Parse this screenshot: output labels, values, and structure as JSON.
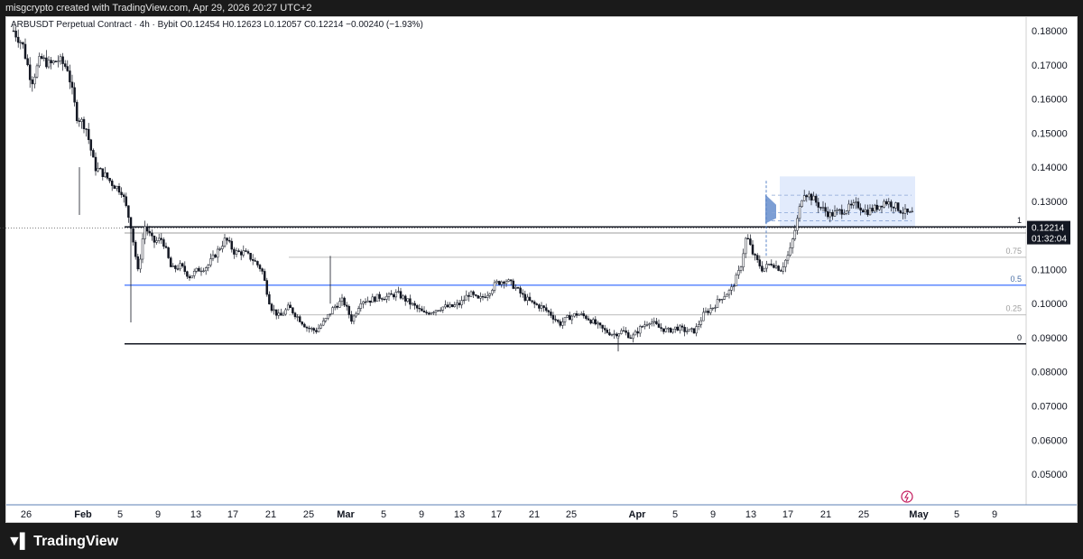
{
  "header": {
    "attribution": "misgcrypto created with TradingView.com, Apr 29, 2026 20:27 UTC+2"
  },
  "legend": {
    "symbol": "ARBUSDT Perpetual Contract · 4h · Bybit",
    "ohlc": "O0.12454  H0.12623  L0.12057  C0.12214  −0.00240 (−1.93%)"
  },
  "footer": {
    "brand": "TradingView"
  },
  "price_label": {
    "price": "0.12214",
    "countdown": "01:32:04"
  },
  "colors": {
    "up": "#131722",
    "down": "#131722",
    "fib_blue": "#2962ff",
    "box_fill": "#dbe6fb",
    "grey_line": "#bdbdbd"
  },
  "chart_data": {
    "type": "candlestick",
    "timeframe": "4h",
    "ylim": [
      0.041,
      0.184
    ],
    "y_ticks": [
      "0.18000",
      "0.17000",
      "0.16000",
      "0.15000",
      "0.14000",
      "0.13000",
      "0.11000",
      "0.10000",
      "0.09000",
      "0.08000",
      "0.07000",
      "0.06000",
      "0.05000"
    ],
    "x_ticks": [
      "26",
      "Feb",
      "5",
      "9",
      "13",
      "17",
      "21",
      "25",
      "Mar",
      "5",
      "9",
      "13",
      "17",
      "21",
      "25",
      "Apr",
      "5",
      "9",
      "13",
      "17",
      "21",
      "25",
      "May",
      "5",
      "9"
    ],
    "fib_levels": [
      {
        "label": "1",
        "price": 0.1225
      },
      {
        "label": "0.75",
        "price": 0.1136
      },
      {
        "label": "0.5",
        "price": 0.1054
      },
      {
        "label": "0.25",
        "price": 0.0967
      },
      {
        "label": "0",
        "price": 0.0882
      }
    ],
    "range_box": {
      "top": 0.1373,
      "bottom": 0.1225
    },
    "price_path": [
      [
        0,
        0.18
      ],
      [
        10,
        0.176
      ],
      [
        20,
        0.165
      ],
      [
        30,
        0.172
      ],
      [
        40,
        0.17
      ],
      [
        50,
        0.1715
      ],
      [
        60,
        0.169
      ],
      [
        70,
        0.155
      ],
      [
        80,
        0.152
      ],
      [
        90,
        0.14
      ],
      [
        100,
        0.138
      ],
      [
        110,
        0.135
      ],
      [
        120,
        0.133
      ],
      [
        130,
        0.123
      ],
      [
        138,
        0.109
      ],
      [
        145,
        0.123
      ],
      [
        155,
        0.118
      ],
      [
        165,
        0.119
      ],
      [
        175,
        0.11
      ],
      [
        185,
        0.111
      ],
      [
        195,
        0.108
      ],
      [
        205,
        0.11
      ],
      [
        215,
        0.111
      ],
      [
        225,
        0.115
      ],
      [
        235,
        0.119
      ],
      [
        245,
        0.115
      ],
      [
        255,
        0.115
      ],
      [
        265,
        0.113
      ],
      [
        275,
        0.11
      ],
      [
        285,
        0.099
      ],
      [
        295,
        0.096
      ],
      [
        305,
        0.099
      ],
      [
        315,
        0.096
      ],
      [
        325,
        0.093
      ],
      [
        335,
        0.092
      ],
      [
        345,
        0.095
      ],
      [
        355,
        0.099
      ],
      [
        365,
        0.101
      ],
      [
        375,
        0.095
      ],
      [
        385,
        0.101
      ],
      [
        395,
        0.101
      ],
      [
        405,
        0.102
      ],
      [
        415,
        0.102
      ],
      [
        425,
        0.103
      ],
      [
        435,
        0.101
      ],
      [
        445,
        0.099
      ],
      [
        455,
        0.097
      ],
      [
        465,
        0.098
      ],
      [
        475,
        0.099
      ],
      [
        485,
        0.099
      ],
      [
        495,
        0.1
      ],
      [
        505,
        0.103
      ],
      [
        515,
        0.101
      ],
      [
        525,
        0.103
      ],
      [
        535,
        0.106
      ],
      [
        545,
        0.107
      ],
      [
        555,
        0.105
      ],
      [
        565,
        0.102
      ],
      [
        575,
        0.1
      ],
      [
        585,
        0.099
      ],
      [
        595,
        0.097
      ],
      [
        605,
        0.094
      ],
      [
        615,
        0.096
      ],
      [
        625,
        0.097
      ],
      [
        635,
        0.096
      ],
      [
        645,
        0.094
      ],
      [
        655,
        0.092
      ],
      [
        665,
        0.091
      ],
      [
        675,
        0.092
      ],
      [
        685,
        0.09
      ],
      [
        695,
        0.093
      ],
      [
        705,
        0.095
      ],
      [
        715,
        0.093
      ],
      [
        725,
        0.092
      ],
      [
        735,
        0.093
      ],
      [
        745,
        0.092
      ],
      [
        755,
        0.092
      ],
      [
        765,
        0.097
      ],
      [
        775,
        0.099
      ],
      [
        785,
        0.102
      ],
      [
        795,
        0.104
      ],
      [
        805,
        0.11
      ],
      [
        812,
        0.12
      ],
      [
        820,
        0.114
      ],
      [
        830,
        0.11
      ],
      [
        840,
        0.112
      ],
      [
        850,
        0.11
      ],
      [
        860,
        0.115
      ],
      [
        868,
        0.124
      ],
      [
        875,
        0.133
      ],
      [
        885,
        0.131
      ],
      [
        895,
        0.128
      ],
      [
        905,
        0.126
      ],
      [
        915,
        0.127
      ],
      [
        925,
        0.128
      ],
      [
        935,
        0.129
      ],
      [
        945,
        0.127
      ],
      [
        955,
        0.128
      ],
      [
        965,
        0.13
      ],
      [
        975,
        0.129
      ],
      [
        985,
        0.127
      ],
      [
        995,
        0.126
      ],
      [
        1002,
        0.13
      ],
      [
        1005,
        0.1221
      ]
    ]
  }
}
